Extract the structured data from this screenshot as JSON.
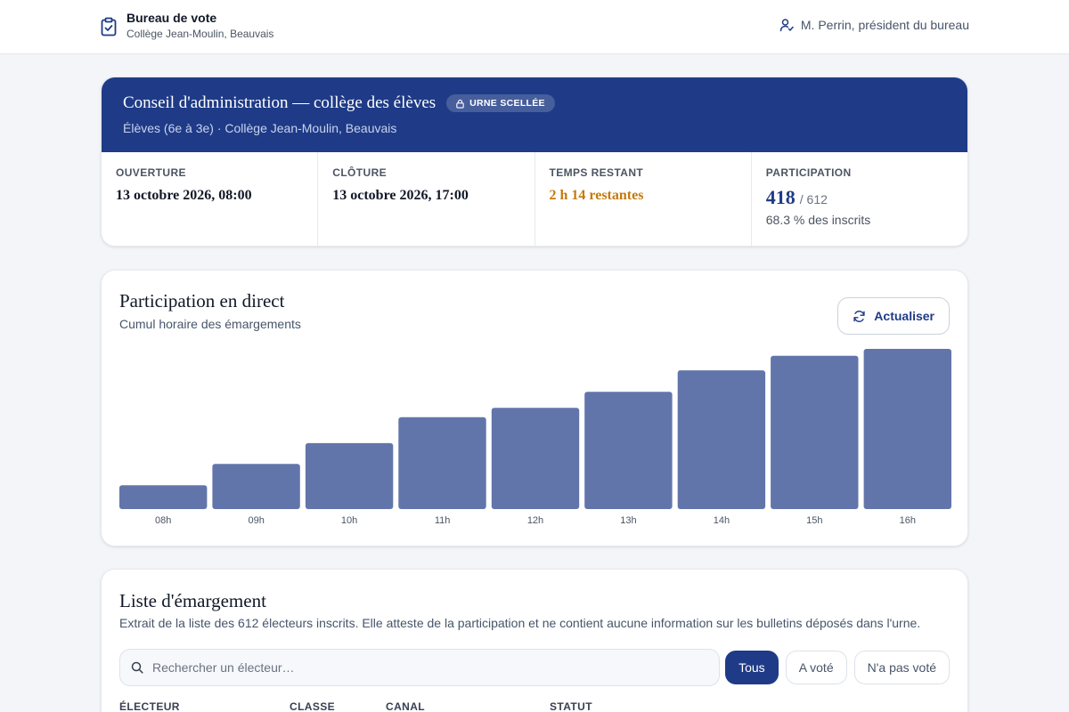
{
  "header": {
    "title": "Bureau de vote",
    "subtitle": "Collège Jean-Moulin, Beauvais",
    "user": "M. Perrin, président du bureau"
  },
  "election": {
    "title": "Conseil d'administration — collège des élèves",
    "badge": "URNE SCELLÉE",
    "subtitle": "Élèves (6e à 3e) · Collège Jean-Moulin, Beauvais"
  },
  "stats": {
    "opening": {
      "label": "OUVERTURE",
      "value": "13 octobre 2026, 08:00"
    },
    "closing": {
      "label": "CLÔTURE",
      "value": "13 octobre 2026, 17:00"
    },
    "remaining": {
      "label": "TEMPS RESTANT",
      "value": "2 h 14 restantes"
    },
    "participation": {
      "label": "PARTICIPATION",
      "value": "418",
      "total": "/ 612",
      "percent": "68.3 % des inscrits"
    }
  },
  "chart_section": {
    "title": "Participation en direct",
    "subtitle": "Cumul horaire des émargements",
    "refresh_label": "Actualiser"
  },
  "chart_data": {
    "type": "bar",
    "categories": [
      "08h",
      "09h",
      "10h",
      "11h",
      "12h",
      "13h",
      "14h",
      "15h",
      "16h"
    ],
    "values": [
      62,
      118,
      172,
      240,
      264,
      306,
      362,
      400,
      418
    ],
    "ylim": [
      0,
      418
    ],
    "color": "#6275ab",
    "grid": false
  },
  "list_section": {
    "title": "Liste d'émargement",
    "description": "Extrait de la liste des 612 électeurs inscrits. Elle atteste de la participation et ne contient aucune information sur les bulletins déposés dans l'urne.",
    "search_placeholder": "Rechercher un électeur…",
    "filters": [
      "Tous",
      "A voté",
      "N'a pas voté"
    ],
    "active_filter": "Tous",
    "columns": [
      "ÉLECTEUR",
      "CLASSE",
      "CANAL",
      "STATUT"
    ]
  },
  "colors": {
    "primary": "#1f3b87",
    "warning": "#c47a0c",
    "bar": "#6275ab"
  }
}
